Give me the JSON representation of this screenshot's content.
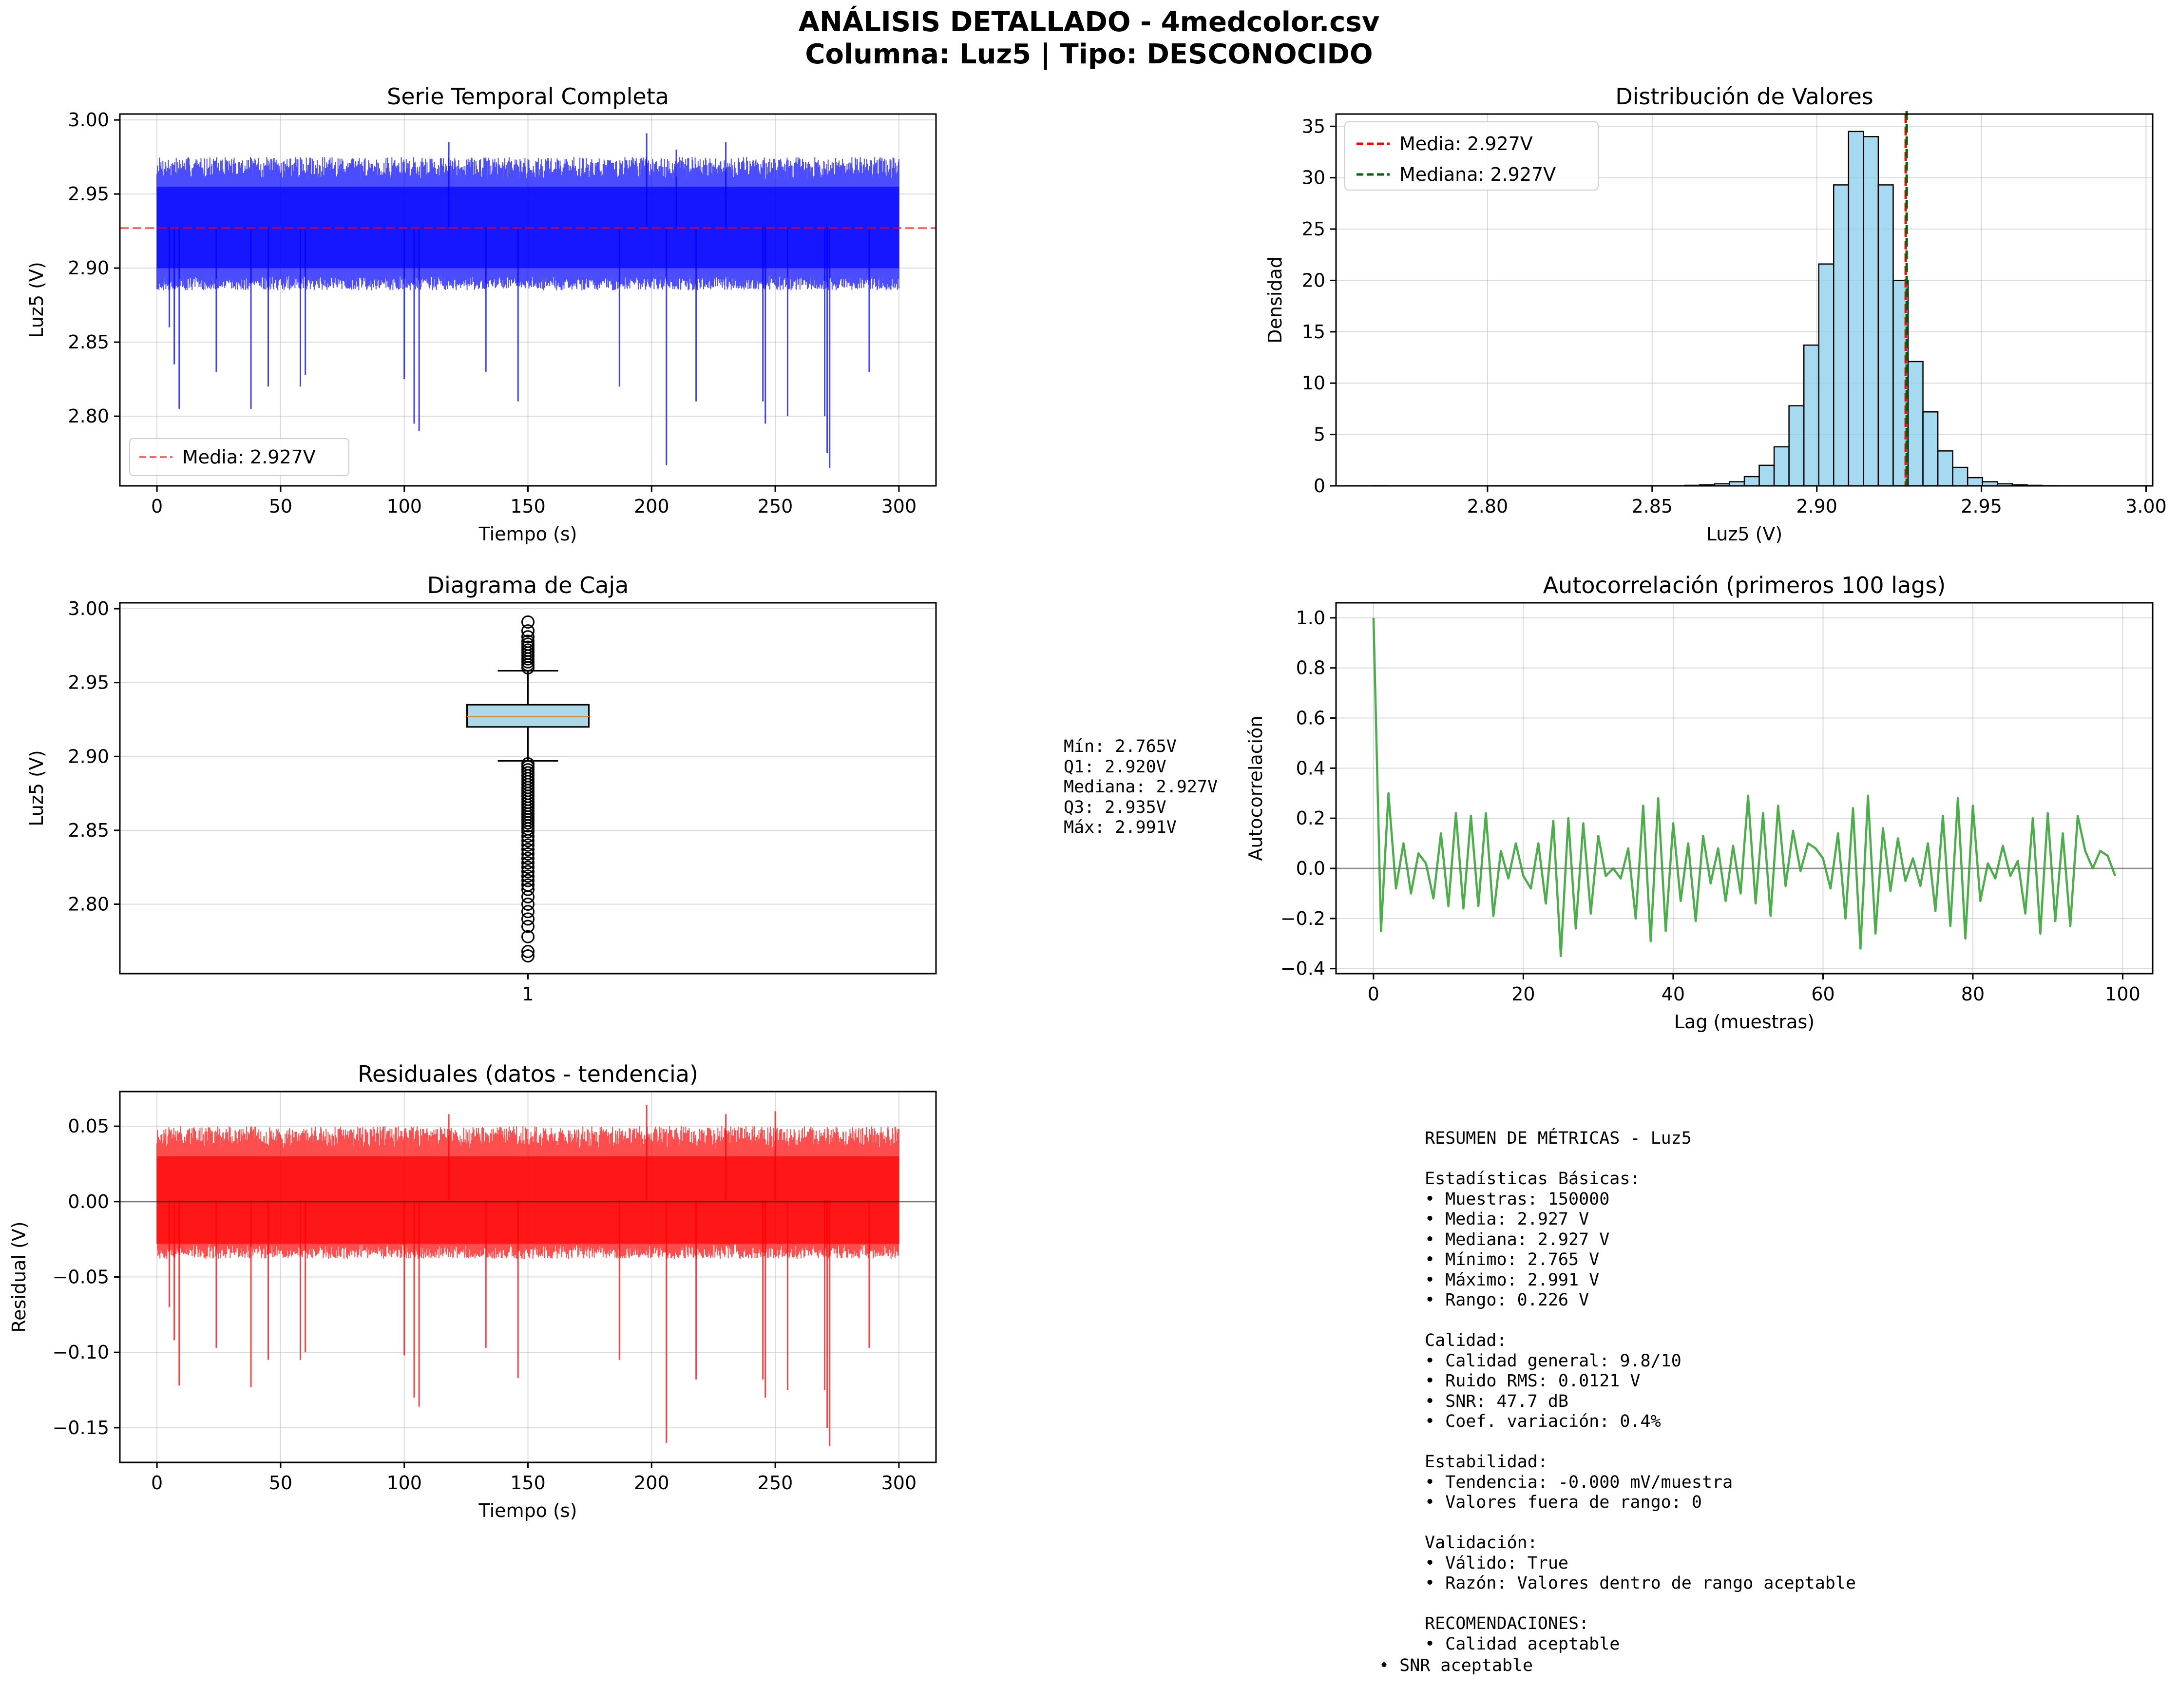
{
  "figure": {
    "title_line1": "ANÁLISIS DETALLADO - 4medcolor.csv",
    "title_line2": "Columna: Luz5 | Tipo: DESCONOCIDO"
  },
  "colors": {
    "series_blue": "#0000ff",
    "mean_red": "#ff0000",
    "median_green": "#006400",
    "hist_fill": "#87ceeb",
    "box_fill": "#add8e6",
    "box_median": "#ff7f0e",
    "acf_green": "#2ca02c",
    "residual_red": "#ff0000",
    "grid": "#b0b0b0"
  },
  "chart_data": [
    {
      "id": "timeseries",
      "type": "line",
      "title": "Serie Temporal Completa",
      "xlabel": "Tiempo (s)",
      "ylabel": "Luz5 (V)",
      "xlim": [
        -15,
        315
      ],
      "ylim": [
        2.753,
        3.004
      ],
      "xticks": [
        0,
        50,
        100,
        150,
        200,
        250,
        300
      ],
      "xtick_labels": [
        "0",
        "50",
        "100",
        "150",
        "200",
        "250",
        "300"
      ],
      "yticks": [
        2.8,
        2.85,
        2.9,
        2.95,
        3.0
      ],
      "ytick_labels": [
        "2.80",
        "2.85",
        "2.90",
        "2.95",
        "3.00"
      ],
      "x_range": [
        0,
        300
      ],
      "mean": 2.927,
      "band": [
        2.9,
        2.955
      ],
      "typical_peak": [
        2.96,
        2.975
      ],
      "typical_trough": [
        2.885,
        2.895
      ],
      "spikes_down": [
        [
          5,
          2.86
        ],
        [
          7,
          2.835
        ],
        [
          9,
          2.805
        ],
        [
          24,
          2.83
        ],
        [
          38,
          2.805
        ],
        [
          45,
          2.82
        ],
        [
          58,
          2.82
        ],
        [
          60,
          2.828
        ],
        [
          100,
          2.825
        ],
        [
          104,
          2.795
        ],
        [
          106,
          2.79
        ],
        [
          133,
          2.83
        ],
        [
          146,
          2.81
        ],
        [
          187,
          2.82
        ],
        [
          206,
          2.767
        ],
        [
          218,
          2.81
        ],
        [
          245,
          2.81
        ],
        [
          246,
          2.795
        ],
        [
          255,
          2.8
        ],
        [
          270,
          2.8
        ],
        [
          271,
          2.775
        ],
        [
          272,
          2.765
        ],
        [
          288,
          2.83
        ]
      ],
      "spikes_up": [
        [
          198,
          2.991
        ],
        [
          118,
          2.985
        ],
        [
          230,
          2.985
        ],
        [
          210,
          2.98
        ]
      ],
      "legend": [
        {
          "label": "Media: 2.927V",
          "style": "dashed",
          "color": "#ff0000"
        }
      ],
      "legend_loc": "lower-left",
      "grid": true
    },
    {
      "id": "histogram",
      "type": "bar",
      "title": "Distribución de Valores",
      "xlabel": "Luz5 (V)",
      "ylabel": "Densidad",
      "xlim": [
        2.754,
        3.002
      ],
      "ylim": [
        0,
        36.2
      ],
      "xticks": [
        2.8,
        2.85,
        2.9,
        2.95,
        3.0
      ],
      "xtick_labels": [
        "2.80",
        "2.85",
        "2.90",
        "2.95",
        "3.00"
      ],
      "yticks": [
        0,
        5,
        10,
        15,
        20,
        25,
        30,
        35
      ],
      "ytick_labels": [
        "0",
        "5",
        "10",
        "15",
        "20",
        "25",
        "30",
        "35"
      ],
      "bin_start": 2.765,
      "bin_width": 0.00452,
      "values": [
        0.02,
        0,
        0,
        0,
        0,
        0,
        0,
        0,
        0,
        0,
        0,
        0,
        0,
        0,
        0,
        0,
        0,
        0,
        0,
        0,
        0,
        0.05,
        0.1,
        0.2,
        0.4,
        0.9,
        2.0,
        3.8,
        7.8,
        13.7,
        21.6,
        29.3,
        34.5,
        34.0,
        29.3,
        20.0,
        12.1,
        7.2,
        3.4,
        1.8,
        0.8,
        0.4,
        0.2,
        0.1,
        0.05,
        0.02,
        0.01,
        0.01,
        0.01,
        0.01
      ],
      "mean_line": 2.927,
      "median_line": 2.927,
      "legend": [
        {
          "label": "Media: 2.927V",
          "style": "dashed",
          "color": "#ff0000"
        },
        {
          "label": "Mediana: 2.927V",
          "style": "dashed",
          "color": "#006400"
        }
      ],
      "legend_loc": "upper-left",
      "grid": true
    },
    {
      "id": "boxplot",
      "type": "box",
      "title": "Diagrama de Caja",
      "ylabel": "Luz5 (V)",
      "xtick_labels": [
        "1"
      ],
      "ylim": [
        2.753,
        3.004
      ],
      "yticks": [
        2.8,
        2.85,
        2.9,
        2.95,
        3.0
      ],
      "ytick_labels": [
        "2.80",
        "2.85",
        "2.90",
        "2.95",
        "3.00"
      ],
      "q1": 2.92,
      "median": 2.927,
      "q3": 2.935,
      "whisker_low": 2.897,
      "whisker_high": 2.958,
      "outliers_upper": [
        2.96,
        2.962,
        2.964,
        2.966,
        2.968,
        2.97,
        2.972,
        2.974,
        2.976,
        2.978,
        2.981,
        2.985,
        2.991
      ],
      "outliers_lower": [
        2.895,
        2.893,
        2.891,
        2.889,
        2.887,
        2.885,
        2.883,
        2.881,
        2.879,
        2.877,
        2.875,
        2.873,
        2.871,
        2.869,
        2.867,
        2.865,
        2.863,
        2.861,
        2.859,
        2.857,
        2.855,
        2.853,
        2.851,
        2.849,
        2.846,
        2.843,
        2.84,
        2.837,
        2.834,
        2.831,
        2.828,
        2.825,
        2.822,
        2.819,
        2.816,
        2.813,
        2.81,
        2.805,
        2.8,
        2.795,
        2.79,
        2.785,
        2.778,
        2.768,
        2.765
      ],
      "grid": true
    },
    {
      "id": "autocorrelation",
      "type": "line",
      "title": "Autocorrelación (primeros 100 lags)",
      "xlabel": "Lag (muestras)",
      "ylabel": "Autocorrelación",
      "xlim": [
        -5,
        104
      ],
      "ylim": [
        -0.42,
        1.06
      ],
      "xticks": [
        0,
        20,
        40,
        60,
        80,
        100
      ],
      "xtick_labels": [
        "0",
        "20",
        "40",
        "60",
        "80",
        "100"
      ],
      "yticks": [
        -0.4,
        -0.2,
        0.0,
        0.2,
        0.4,
        0.6,
        0.8,
        1.0
      ],
      "ytick_labels": [
        "−0.4",
        "−0.2",
        "0.0",
        "0.2",
        "0.4",
        "0.6",
        "0.8",
        "1.0"
      ],
      "values": [
        1.0,
        -0.25,
        0.3,
        -0.08,
        0.1,
        -0.1,
        0.06,
        0.02,
        -0.12,
        0.14,
        -0.15,
        0.22,
        -0.16,
        0.21,
        -0.15,
        0.22,
        -0.19,
        0.07,
        -0.04,
        0.1,
        -0.03,
        -0.08,
        0.1,
        -0.14,
        0.19,
        -0.35,
        0.2,
        -0.24,
        0.18,
        -0.18,
        0.13,
        -0.03,
        0.0,
        -0.04,
        0.08,
        -0.2,
        0.25,
        -0.29,
        0.28,
        -0.25,
        0.18,
        -0.13,
        0.1,
        -0.21,
        0.13,
        -0.06,
        0.08,
        -0.13,
        0.09,
        -0.1,
        0.29,
        -0.14,
        0.22,
        -0.19,
        0.25,
        -0.07,
        0.15,
        -0.01,
        0.1,
        0.08,
        0.04,
        -0.08,
        0.14,
        -0.2,
        0.24,
        -0.32,
        0.29,
        -0.26,
        0.16,
        -0.09,
        0.12,
        -0.05,
        0.04,
        -0.07,
        0.1,
        -0.17,
        0.21,
        -0.23,
        0.28,
        -0.28,
        0.25,
        -0.13,
        0.02,
        -0.04,
        0.09,
        -0.03,
        0.03,
        -0.18,
        0.2,
        -0.26,
        0.22,
        -0.21,
        0.14,
        -0.23,
        0.21,
        0.07,
        0.0,
        0.07,
        0.05,
        -0.03
      ],
      "zero_line": 0,
      "grid": true
    },
    {
      "id": "residuals",
      "type": "line",
      "title": "Residuales (datos - tendencia)",
      "xlabel": "Tiempo (s)",
      "ylabel": "Residual (V)",
      "xlim": [
        -15,
        315
      ],
      "ylim": [
        -0.173,
        0.073
      ],
      "xticks": [
        0,
        50,
        100,
        150,
        200,
        250,
        300
      ],
      "xtick_labels": [
        "0",
        "50",
        "100",
        "150",
        "200",
        "250",
        "300"
      ],
      "yticks": [
        -0.15,
        -0.1,
        -0.05,
        0.0,
        0.05
      ],
      "ytick_labels": [
        "−0.15",
        "−0.10",
        "−0.05",
        "0.00",
        "0.05"
      ],
      "x_range": [
        0,
        300
      ],
      "band": [
        -0.028,
        0.03
      ],
      "typical_peak": [
        0.035,
        0.05
      ],
      "typical_trough": [
        -0.038,
        -0.028
      ],
      "spikes_down": [
        [
          5,
          -0.07
        ],
        [
          7,
          -0.092
        ],
        [
          9,
          -0.122
        ],
        [
          24,
          -0.097
        ],
        [
          38,
          -0.123
        ],
        [
          45,
          -0.105
        ],
        [
          58,
          -0.105
        ],
        [
          60,
          -0.1
        ],
        [
          100,
          -0.102
        ],
        [
          104,
          -0.13
        ],
        [
          106,
          -0.136
        ],
        [
          133,
          -0.097
        ],
        [
          146,
          -0.117
        ],
        [
          187,
          -0.105
        ],
        [
          206,
          -0.16
        ],
        [
          218,
          -0.118
        ],
        [
          245,
          -0.118
        ],
        [
          246,
          -0.13
        ],
        [
          255,
          -0.125
        ],
        [
          270,
          -0.125
        ],
        [
          271,
          -0.15
        ],
        [
          272,
          -0.162
        ],
        [
          288,
          -0.097
        ]
      ],
      "spikes_up": [
        [
          198,
          0.064
        ],
        [
          118,
          0.058
        ],
        [
          230,
          0.058
        ],
        [
          250,
          0.06
        ]
      ],
      "zero_line": 0,
      "grid": true
    }
  ],
  "box_stats": [
    "Mín: 2.765V",
    "Q1: 2.920V",
    "Mediana: 2.927V",
    "Q3: 2.935V",
    "Máx: 2.991V"
  ],
  "summary": {
    "lines": [
      "RESUMEN DE MÉTRICAS - Luz5",
      "",
      "Estadísticas Básicas:",
      "• Muestras: 150000",
      "• Media: 2.927 V",
      "• Mediana: 2.927 V",
      "• Mínimo: 2.765 V",
      "• Máximo: 2.991 V",
      "• Rango: 0.226 V",
      "",
      "Calidad:",
      "• Calidad general: 9.8/10",
      "• Ruido RMS: 0.0121 V",
      "• SNR: 47.7 dB",
      "• Coef. variación: 0.4%",
      "",
      "Estabilidad:",
      "• Tendencia: -0.000 mV/muestra",
      "• Valores fuera de rango: 0",
      "",
      "Validación:",
      "• Válido: True",
      "• Razón: Valores dentro de rango aceptable",
      "",
      "RECOMENDACIONES:",
      "• Calidad aceptable"
    ],
    "last_line": "• SNR aceptable"
  }
}
